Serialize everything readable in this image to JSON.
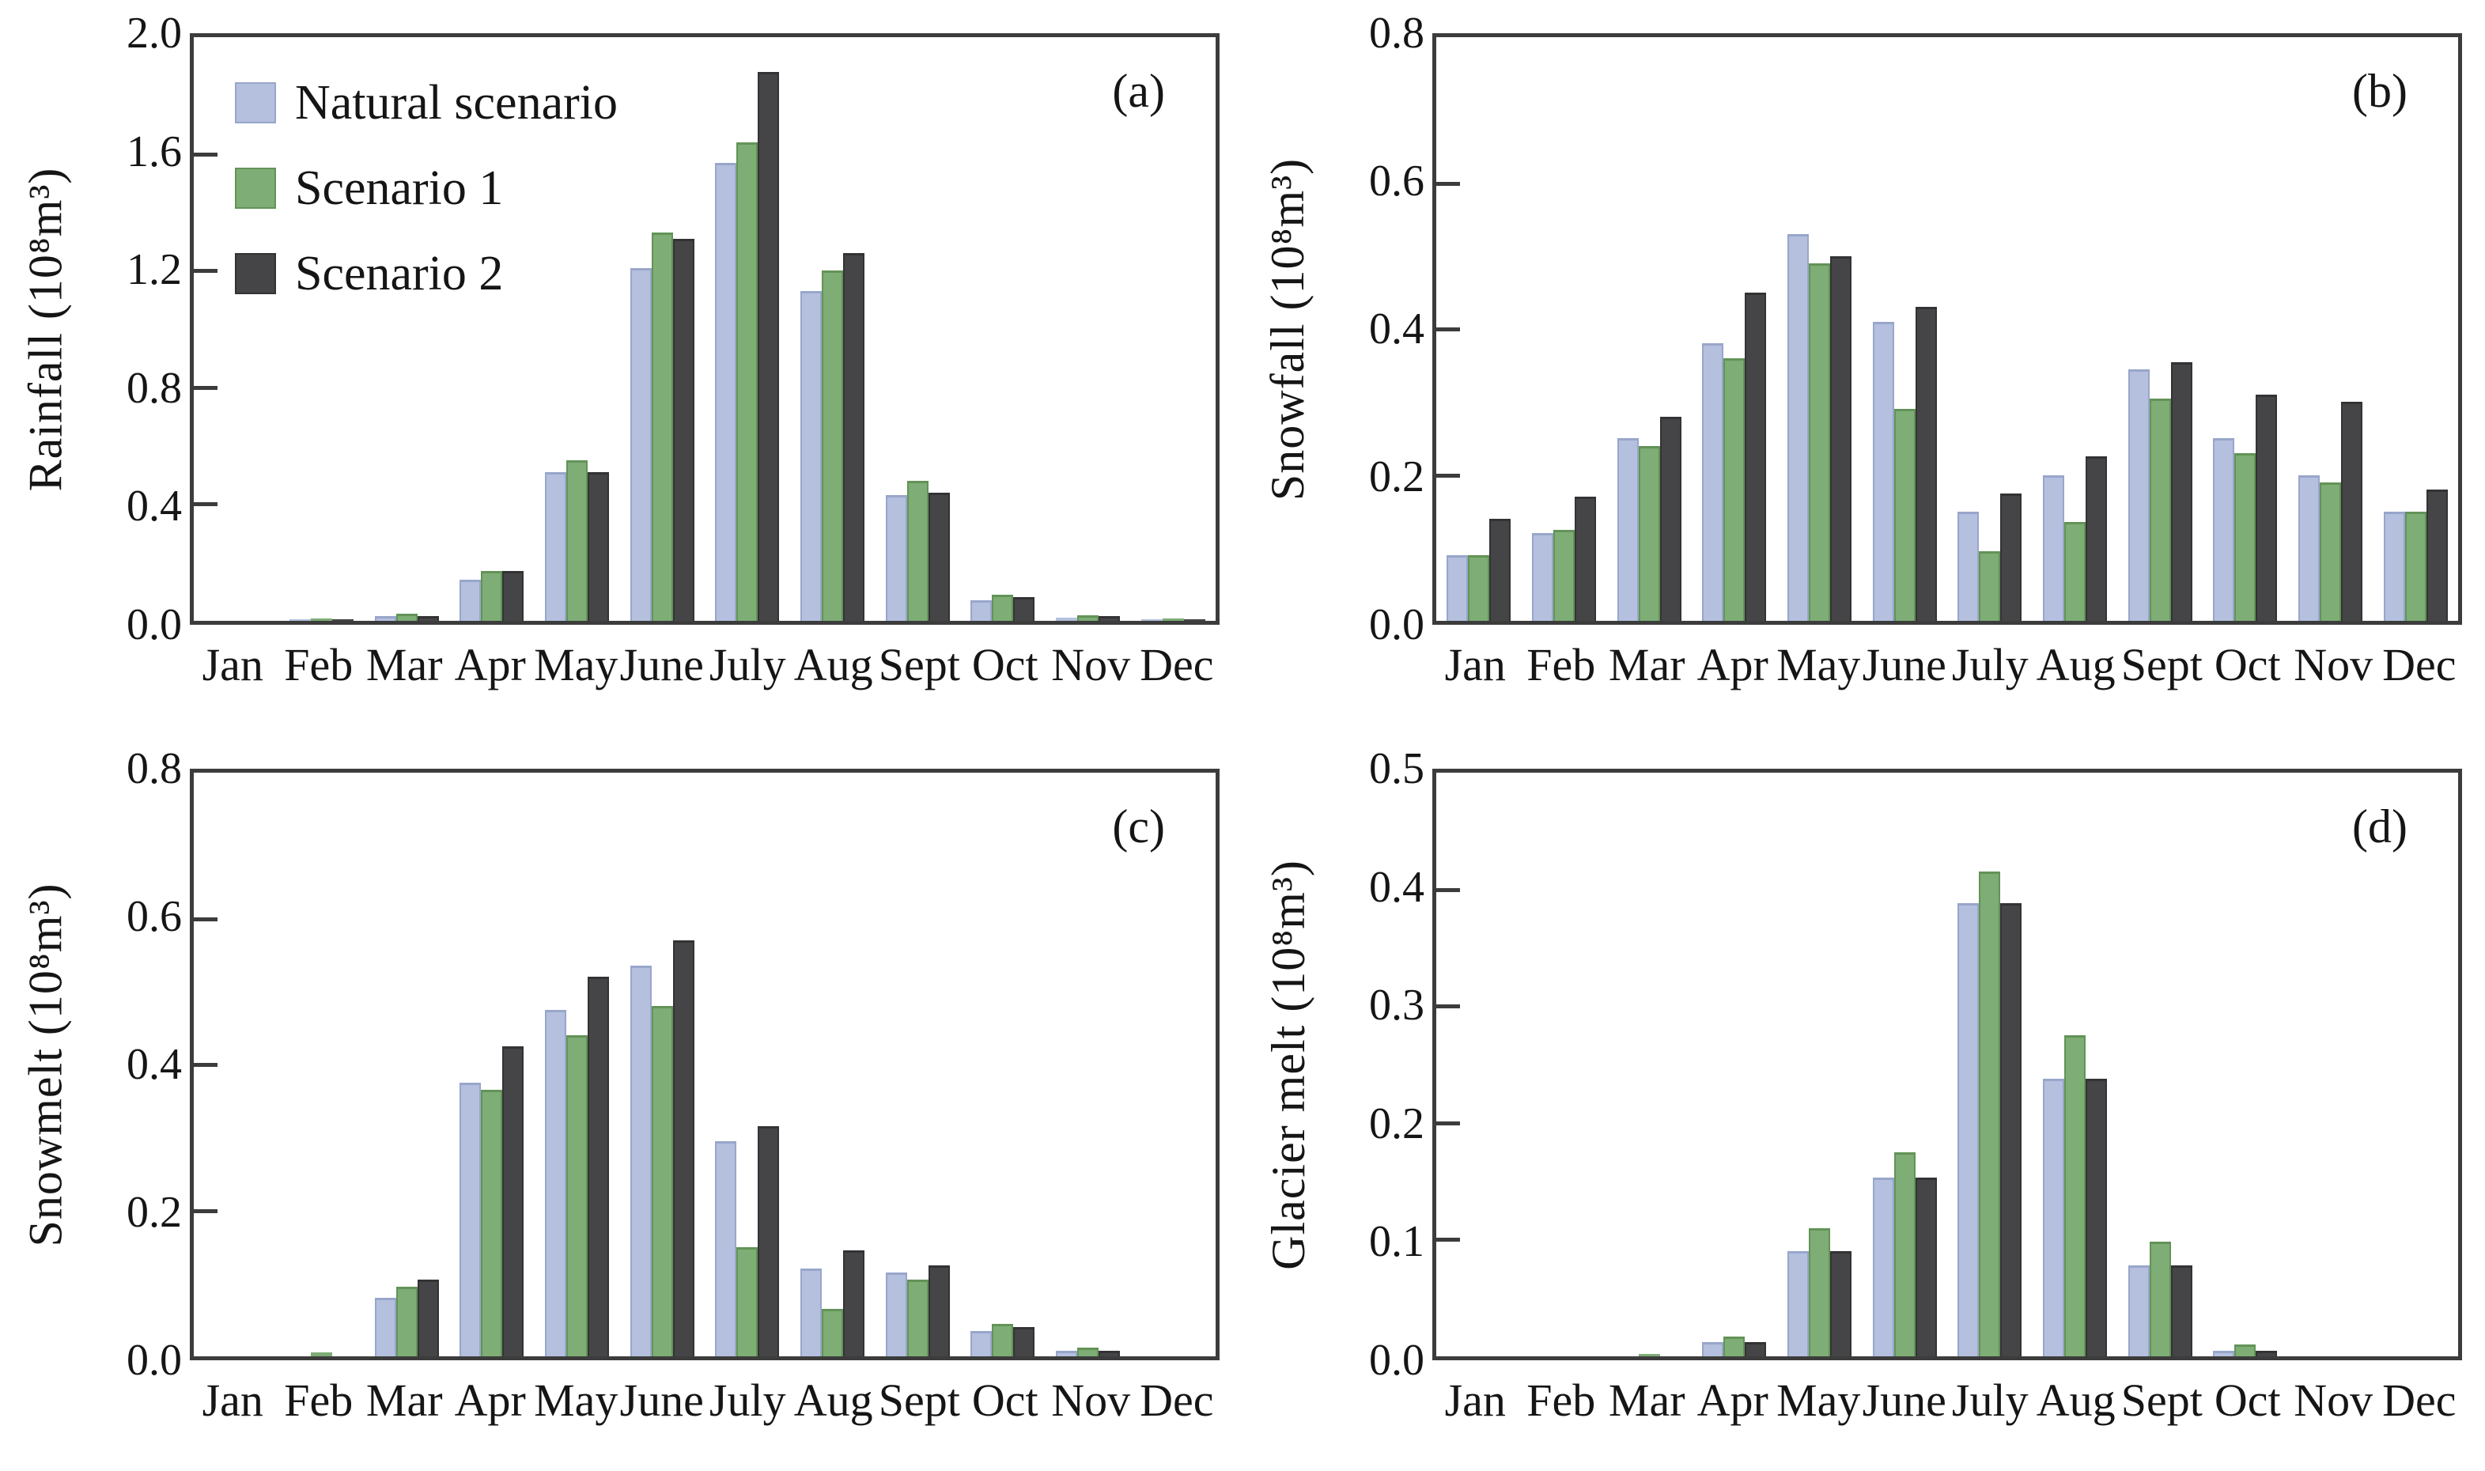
{
  "figure": {
    "panel_letters": [
      "(a)",
      "(b)",
      "(c)",
      "(d)"
    ],
    "background": "#ffffff",
    "axis_color": "#3c3c3c",
    "text_color": "#151515",
    "legend": {
      "position": "top-left-panel-a",
      "entries": [
        {
          "label": "Natural scenario",
          "color": "#b4c0de",
          "border": "#98a6cb"
        },
        {
          "label": "Scenario 1",
          "color": "#7ead76",
          "border": "#639357"
        },
        {
          "label": "Scenario 2",
          "color": "#454547",
          "border": "#333335"
        }
      ]
    }
  },
  "chart_data": [
    {
      "type": "bar",
      "panel": "(a)",
      "ylabel": "Rainfall (10⁸m³)",
      "xlabel": "",
      "ylim": [
        0,
        2.0
      ],
      "yticks": [
        "0.0",
        "0.4",
        "0.8",
        "1.2",
        "1.6",
        "2.0"
      ],
      "grid": false,
      "legend_position": "top-left",
      "categories": [
        "Jan",
        "Feb",
        "Mar",
        "Apr",
        "May",
        "June",
        "July",
        "Aug",
        "Sept",
        "Oct",
        "Nov",
        "Dec"
      ],
      "series": [
        {
          "name": "Natural scenario",
          "values": [
            0,
            0.005,
            0.015,
            0.14,
            0.51,
            1.21,
            1.57,
            1.13,
            0.43,
            0.07,
            0.01,
            0.003
          ]
        },
        {
          "name": "Scenario 1",
          "values": [
            0,
            0.008,
            0.025,
            0.17,
            0.55,
            1.33,
            1.64,
            1.2,
            0.48,
            0.09,
            0.02,
            0.008
          ]
        },
        {
          "name": "Scenario 2",
          "values": [
            0,
            0.003,
            0.015,
            0.17,
            0.51,
            1.31,
            1.88,
            1.26,
            0.44,
            0.08,
            0.015,
            0.003
          ]
        }
      ]
    },
    {
      "type": "bar",
      "panel": "(b)",
      "ylabel": "Snowfall (10⁸m³)",
      "xlabel": "",
      "ylim": [
        0,
        0.8
      ],
      "yticks": [
        "0.0",
        "0.2",
        "0.4",
        "0.6",
        "0.8"
      ],
      "grid": false,
      "legend_position": "none",
      "categories": [
        "Jan",
        "Feb",
        "Mar",
        "Apr",
        "May",
        "June",
        "July",
        "Aug",
        "Sept",
        "Oct",
        "Nov",
        "Dec"
      ],
      "series": [
        {
          "name": "Natural scenario",
          "values": [
            0.09,
            0.12,
            0.25,
            0.38,
            0.53,
            0.41,
            0.15,
            0.2,
            0.345,
            0.25,
            0.2,
            0.15
          ]
        },
        {
          "name": "Scenario 1",
          "values": [
            0.09,
            0.125,
            0.24,
            0.36,
            0.49,
            0.29,
            0.095,
            0.135,
            0.305,
            0.23,
            0.19,
            0.15
          ]
        },
        {
          "name": "Scenario 2",
          "values": [
            0.14,
            0.17,
            0.28,
            0.45,
            0.5,
            0.43,
            0.175,
            0.225,
            0.355,
            0.31,
            0.3,
            0.18
          ]
        }
      ]
    },
    {
      "type": "bar",
      "panel": "(c)",
      "ylabel": "Snowmelt (10⁸m³)",
      "xlabel": "",
      "ylim": [
        0,
        0.8
      ],
      "yticks": [
        "0.0",
        "0.2",
        "0.4",
        "0.6",
        "0.8"
      ],
      "grid": false,
      "legend_position": "none",
      "categories": [
        "Jan",
        "Feb",
        "Mar",
        "Apr",
        "May",
        "June",
        "July",
        "Aug",
        "Sept",
        "Oct",
        "Nov",
        "Dec"
      ],
      "series": [
        {
          "name": "Natural scenario",
          "values": [
            0,
            0,
            0.08,
            0.375,
            0.475,
            0.535,
            0.295,
            0.12,
            0.115,
            0.035,
            0.008,
            0
          ]
        },
        {
          "name": "Scenario 1",
          "values": [
            0,
            0.005,
            0.095,
            0.365,
            0.44,
            0.48,
            0.15,
            0.065,
            0.105,
            0.045,
            0.012,
            0
          ]
        },
        {
          "name": "Scenario 2",
          "values": [
            0,
            0,
            0.105,
            0.425,
            0.52,
            0.57,
            0.315,
            0.145,
            0.125,
            0.04,
            0.008,
            0
          ]
        }
      ]
    },
    {
      "type": "bar",
      "panel": "(d)",
      "ylabel": "Glacier melt (10⁸m³)",
      "xlabel": "",
      "ylim": [
        0,
        0.5
      ],
      "yticks": [
        "0.0",
        "0.1",
        "0.2",
        "0.3",
        "0.4",
        "0.5"
      ],
      "grid": false,
      "legend_position": "none",
      "categories": [
        "Jan",
        "Feb",
        "Mar",
        "Apr",
        "May",
        "June",
        "July",
        "Aug",
        "Sept",
        "Oct",
        "Nov",
        "Dec"
      ],
      "series": [
        {
          "name": "Natural scenario",
          "values": [
            0,
            0,
            0,
            0.012,
            0.09,
            0.153,
            0.388,
            0.238,
            0.078,
            0.005,
            0,
            0
          ]
        },
        {
          "name": "Scenario 1",
          "values": [
            0,
            0,
            0.002,
            0.017,
            0.11,
            0.175,
            0.415,
            0.275,
            0.098,
            0.01,
            0,
            0
          ]
        },
        {
          "name": "Scenario 2",
          "values": [
            0,
            0,
            0,
            0.012,
            0.09,
            0.153,
            0.388,
            0.238,
            0.078,
            0.005,
            0,
            0
          ]
        }
      ]
    }
  ]
}
